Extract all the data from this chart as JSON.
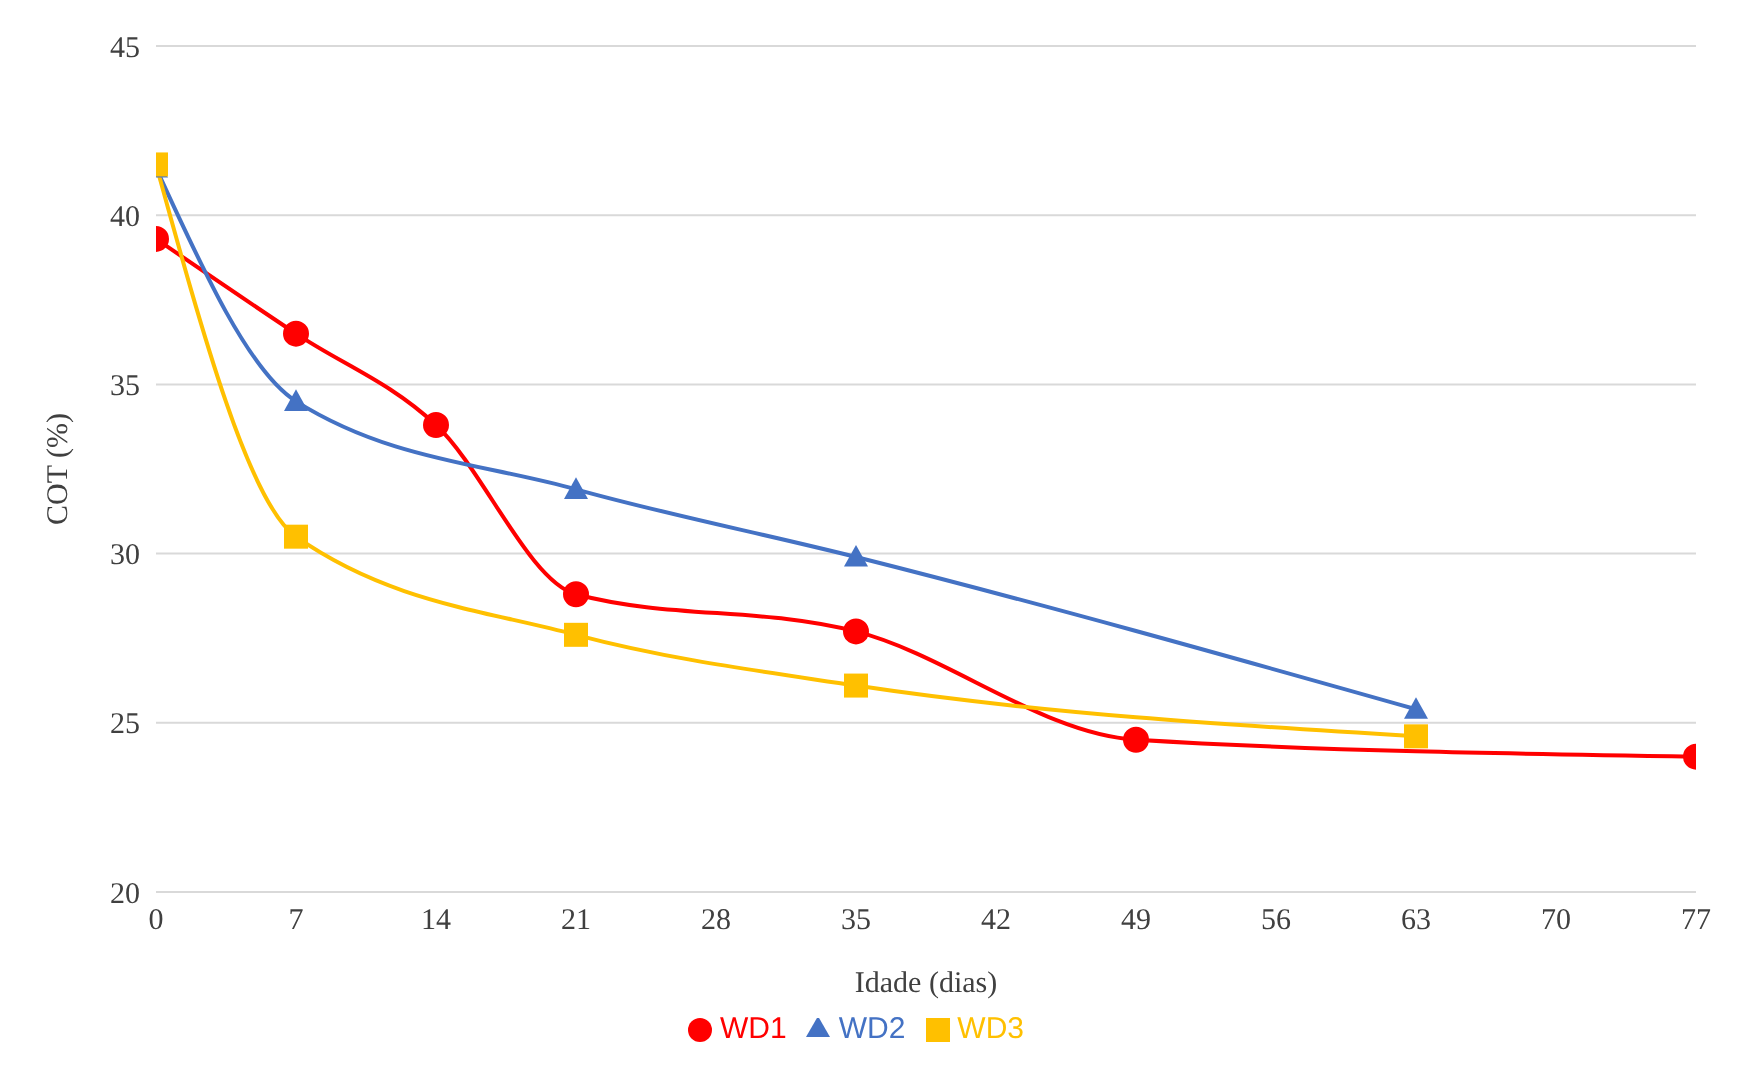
{
  "chart_data": {
    "type": "line",
    "xlabel": "Idade (dias)",
    "ylabel": "COT (%)",
    "xlim": [
      0,
      77
    ],
    "xticks": [
      0,
      7,
      14,
      21,
      28,
      35,
      42,
      49,
      56,
      63,
      70,
      77
    ],
    "ylim": [
      20,
      45
    ],
    "yticks": [
      20,
      25,
      30,
      35,
      40,
      45
    ],
    "grid": "y",
    "legend": "bottom",
    "series": [
      {
        "name": "WD1",
        "color": "#ff0000",
        "marker": "circle",
        "x": [
          0,
          7,
          14,
          21,
          35,
          49,
          77
        ],
        "values": [
          39.3,
          36.5,
          33.8,
          28.8,
          27.7,
          24.5,
          24.0
        ]
      },
      {
        "name": "WD2",
        "color": "#4472c4",
        "marker": "triangle",
        "x": [
          0,
          7,
          21,
          35,
          63
        ],
        "values": [
          41.4,
          34.5,
          31.9,
          29.9,
          25.4
        ]
      },
      {
        "name": "WD3",
        "color": "#ffc000",
        "marker": "square",
        "x": [
          0,
          7,
          21,
          35,
          63
        ],
        "values": [
          41.5,
          30.5,
          27.6,
          26.1,
          24.6
        ]
      }
    ]
  }
}
